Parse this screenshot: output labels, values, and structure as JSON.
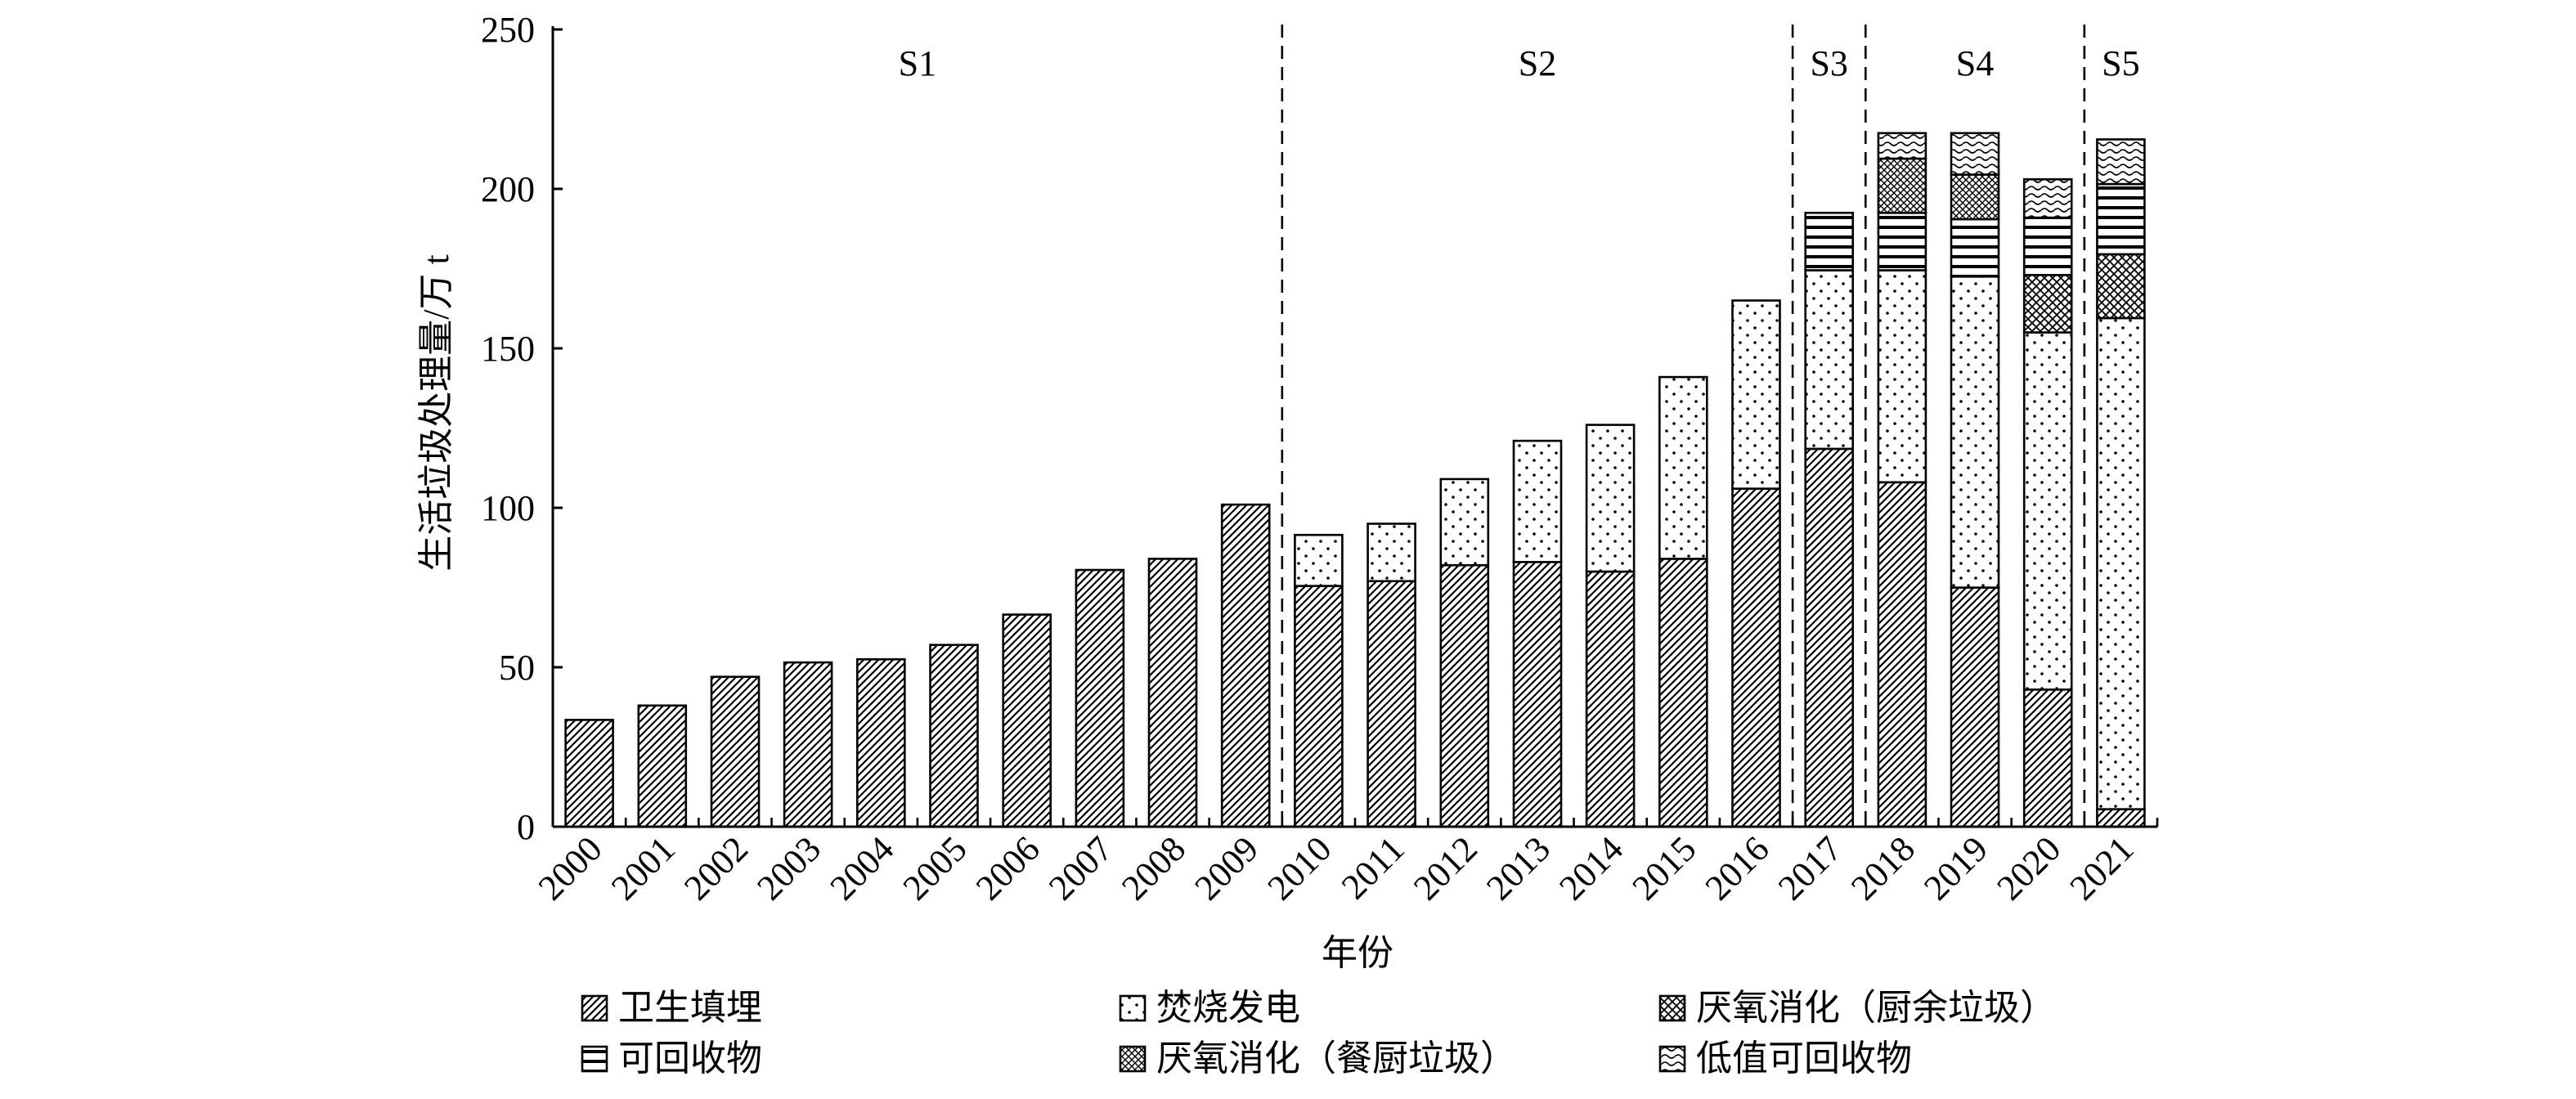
{
  "chart_data": {
    "type": "bar",
    "stacked": true,
    "ylabel": "生活垃圾处理量/万 t",
    "xlabel": "年份",
    "ylim": [
      0,
      250
    ],
    "yticks": [
      "0",
      "50",
      "100",
      "150",
      "200",
      "250"
    ],
    "grid": false,
    "legend_position": "bottom",
    "categories": [
      "2000",
      "2001",
      "2002",
      "2003",
      "2004",
      "2005",
      "2006",
      "2007",
      "2008",
      "2009",
      "2010",
      "2011",
      "2012",
      "2013",
      "2014",
      "2015",
      "2016",
      "2017",
      "2018",
      "2019",
      "2020",
      "2021"
    ],
    "series": [
      {
        "name": "卫生填埋",
        "pattern": "diagonal-hatch",
        "values": [
          33.5,
          38,
          47,
          51.5,
          52.5,
          57,
          66.5,
          80.5,
          84,
          101,
          75.5,
          77,
          82,
          83,
          80,
          84,
          106,
          118.5,
          108,
          75,
          43,
          5.5
        ]
      },
      {
        "name": "焚烧发电",
        "pattern": "dots",
        "values": [
          0,
          0,
          0,
          0,
          0,
          0,
          0,
          0,
          0,
          0,
          16,
          18,
          27,
          38,
          46,
          57,
          59,
          56,
          66.5,
          97.5,
          112,
          154
        ]
      },
      {
        "name": "厌氧消化（厨余垃圾）",
        "pattern": "cross-hatch",
        "values": [
          0,
          0,
          0,
          0,
          0,
          0,
          0,
          0,
          0,
          0,
          0,
          0,
          0,
          0,
          0,
          0,
          0,
          0,
          0,
          0,
          18,
          20
        ]
      },
      {
        "name": "可回收物",
        "pattern": "horizontal-lines",
        "values": [
          0,
          0,
          0,
          0,
          0,
          0,
          0,
          0,
          0,
          0,
          0,
          0,
          0,
          0,
          0,
          0,
          0,
          18,
          18,
          18,
          18,
          22
        ]
      },
      {
        "name": "厌氧消化（餐厨垃圾）",
        "pattern": "cross-hatch-fine",
        "values": [
          0,
          0,
          0,
          0,
          0,
          0,
          0,
          0,
          0,
          0,
          0,
          0,
          0,
          0,
          0,
          0,
          0,
          0,
          17,
          14,
          0,
          0
        ]
      },
      {
        "name": "低值可回收物",
        "pattern": "waves",
        "values": [
          0,
          0,
          0,
          0,
          0,
          0,
          0,
          0,
          0,
          0,
          0,
          0,
          0,
          0,
          0,
          0,
          0,
          0,
          8,
          13,
          12,
          14
        ]
      }
    ],
    "stages": [
      {
        "label": "S1",
        "from": "2000",
        "to": "2009"
      },
      {
        "label": "S2",
        "from": "2010",
        "to": "2016"
      },
      {
        "label": "S3",
        "from": "2017",
        "to": "2017"
      },
      {
        "label": "S4",
        "from": "2018",
        "to": "2020"
      },
      {
        "label": "S5",
        "from": "2021",
        "to": "2021"
      }
    ]
  }
}
